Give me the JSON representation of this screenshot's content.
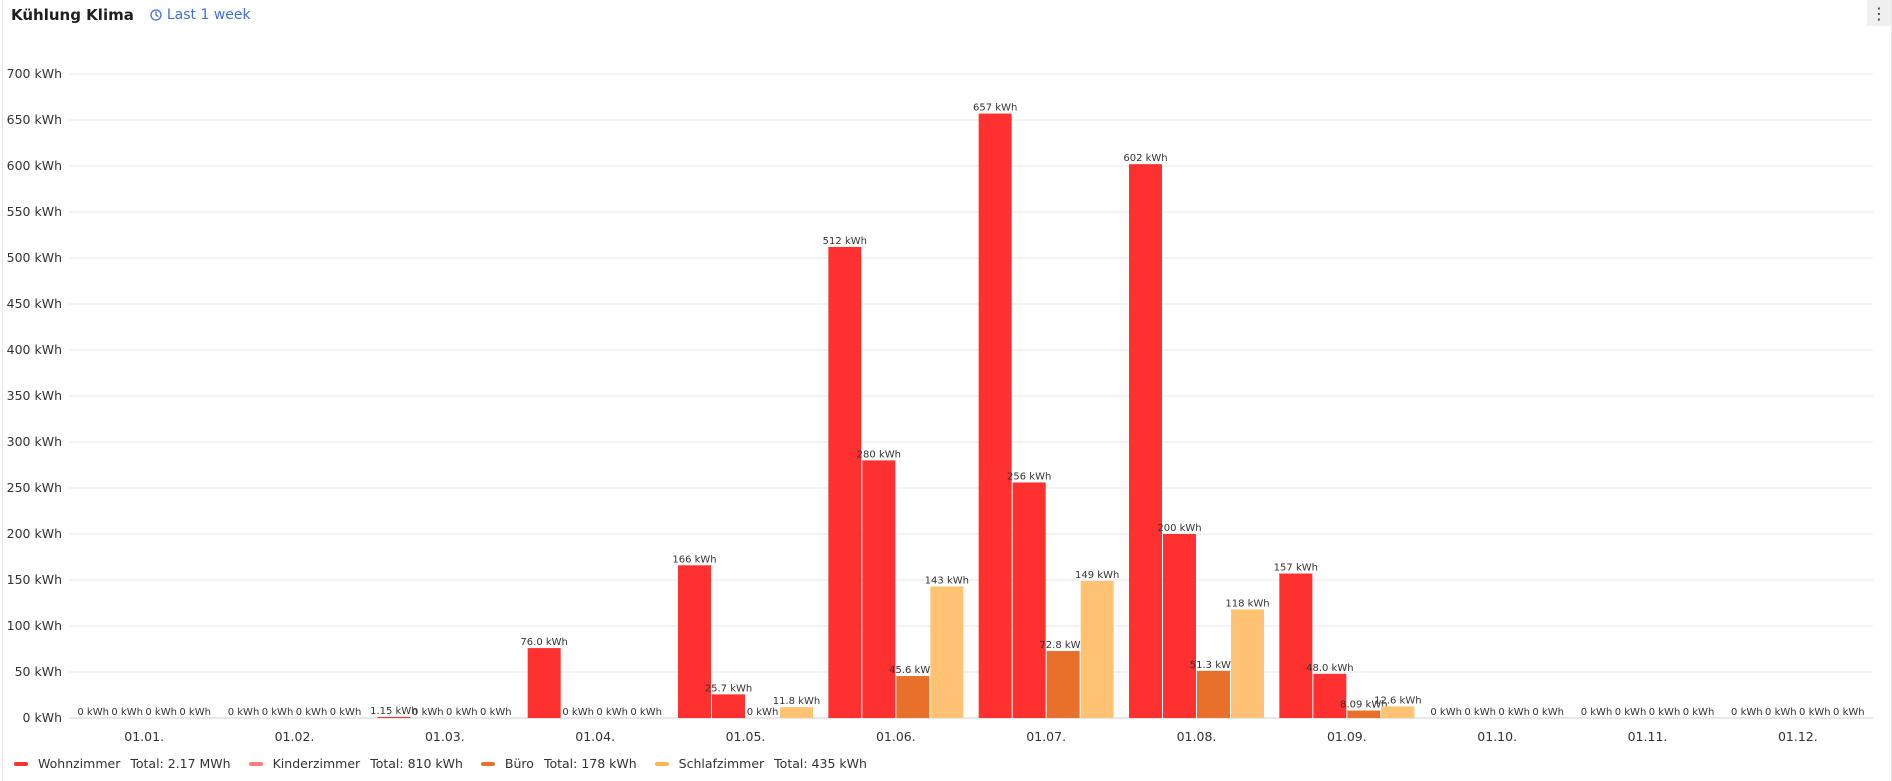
{
  "panel": {
    "title": "Kühlung Klima",
    "time_range": "Last 1 week",
    "menu_icon": "kebab-menu-icon",
    "clock_icon": "clock-icon"
  },
  "chart_data": {
    "type": "bar",
    "categories": [
      "01.01.",
      "01.02.",
      "01.03.",
      "01.04.",
      "01.05.",
      "01.06.",
      "01.07.",
      "01.08.",
      "01.09.",
      "01.10.",
      "01.11.",
      "01.12."
    ],
    "y_ticks": [
      "0 kWh",
      "50 kWh",
      "100 kWh",
      "150 kWh",
      "200 kWh",
      "250 kWh",
      "300 kWh",
      "350 kWh",
      "400 kWh",
      "450 kWh",
      "500 kWh",
      "550 kWh",
      "600 kWh",
      "650 kWh",
      "700 kWh"
    ],
    "ylim": [
      0,
      700
    ],
    "unit": "kWh",
    "grid": true,
    "legend_position": "bottom-left",
    "series": [
      {
        "name": "Wohnzimmer",
        "color": "#ff3030",
        "total": "Total: 2.17 MWh",
        "values": [
          0,
          0,
          1.15,
          76.0,
          166,
          512,
          657,
          602,
          157,
          0,
          0,
          0
        ],
        "labels": [
          "0 kWh",
          "0 kWh",
          "1.15 kWh",
          "76.0 kWh",
          "166 kWh",
          "512 kWh",
          "657 kWh",
          "602 kWh",
          "157 kWh",
          "0 kWh",
          "0 kWh",
          "0 kWh"
        ]
      },
      {
        "name": "Kinderzimmer",
        "color": "#ff3030",
        "legend_color": "#ff7a7a",
        "total": "Total: 810 kWh",
        "values": [
          0,
          0,
          0,
          0,
          25.7,
          280,
          256,
          200,
          48.0,
          0,
          0,
          0
        ],
        "labels": [
          "0 kWh",
          "0 kWh",
          "0 kWh",
          "0 kWh",
          "25.7 kWh",
          "280 kWh",
          "256 kWh",
          "200 kWh",
          "48.0 kWh",
          "0 kWh",
          "0 kWh",
          "0 kWh"
        ]
      },
      {
        "name": "Büro",
        "color": "#e8702a",
        "total": "Total: 178 kWh",
        "values": [
          0,
          0,
          0,
          0,
          0,
          45.6,
          72.8,
          51.3,
          8.09,
          0,
          0,
          0
        ],
        "labels": [
          "0 kWh",
          "0 kWh",
          "0 kWh",
          "0 kWh",
          "0 kWh",
          "45.6 kWh",
          "72.8 kWh",
          "51.3 kWh",
          "8.09 kWh",
          "0 kWh",
          "0 kWh",
          "0 kWh"
        ]
      },
      {
        "name": "Schlafzimmer",
        "color": "#ffc373",
        "legend_color": "#ffb357",
        "total": "Total: 435 kWh",
        "values": [
          0,
          0,
          0,
          0,
          11.8,
          143,
          149,
          118,
          12.6,
          0,
          0,
          0
        ],
        "labels": [
          "0 kWh",
          "0 kWh",
          "0 kWh",
          "0 kWh",
          "11.8 kWh",
          "143 kWh",
          "149 kWh",
          "118 kWh",
          "12.6 kWh",
          "0 kWh",
          "0 kWh",
          "0 kWh"
        ]
      }
    ]
  }
}
